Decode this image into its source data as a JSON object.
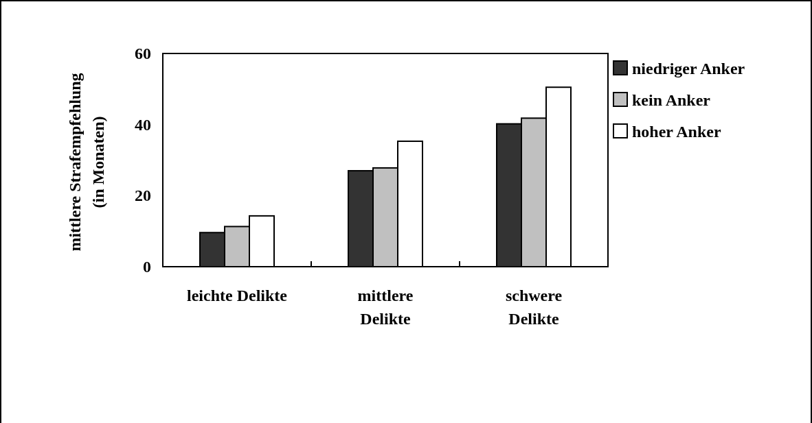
{
  "chart_data": {
    "type": "bar",
    "categories": [
      "leichte Delikte",
      "mittlere\nDelikte",
      "schwere\nDelikte"
    ],
    "ylabel": "mittlere Strafempfehlung\n(in Monaten)",
    "ylim": [
      0,
      60
    ],
    "yticks": [
      0,
      20,
      40,
      60
    ],
    "grid": false,
    "legend": "right",
    "series": [
      {
        "name": "niedriger Anker",
        "color": "#333333",
        "values": [
          9.6,
          27.0,
          40.2
        ]
      },
      {
        "name": "kein Anker",
        "color": "#c0c0c0",
        "values": [
          11.3,
          27.8,
          41.8
        ]
      },
      {
        "name": "hoher Anker",
        "color": "#ffffff",
        "values": [
          14.3,
          35.3,
          50.5
        ]
      }
    ]
  }
}
